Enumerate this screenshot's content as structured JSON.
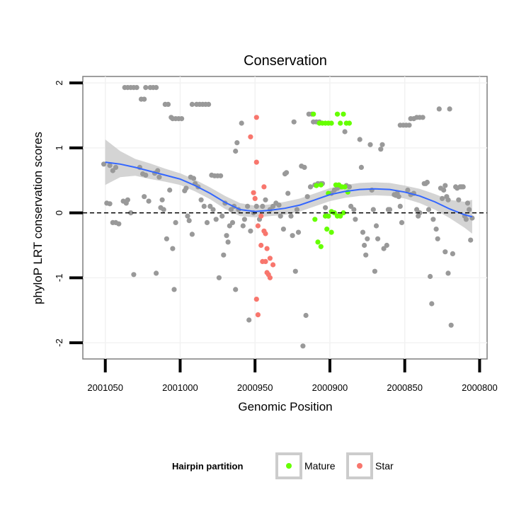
{
  "chart_data": {
    "type": "scatter",
    "title": "Conservation",
    "xlabel": "Genomic Position",
    "ylabel": "phyloP LRT conservation scores",
    "xlim": [
      2001065,
      2000795
    ],
    "ylim": [
      -2.25,
      2.1
    ],
    "x_reversed": true,
    "x_ticks": [
      2001050,
      2001000,
      2000950,
      2000900,
      2000850,
      2000800
    ],
    "x_tick_labels": [
      "2001050",
      "2001000",
      "2000950",
      "2000900",
      "2000850",
      "2000800"
    ],
    "y_ticks": [
      -2,
      -1,
      0,
      1,
      2
    ],
    "y_tick_labels": [
      "-2",
      "-1",
      "0",
      "1",
      "2"
    ],
    "reference_line": {
      "y": 0,
      "style": "dashed",
      "color": "#000000"
    },
    "grid": true,
    "legend": {
      "title": "Hairpin partition",
      "position": "bottom",
      "entries": [
        {
          "label": "Mature",
          "color": "#66ff00"
        },
        {
          "label": "Star",
          "color": "#f8766d"
        }
      ]
    },
    "colors": {
      "other": "#999999",
      "mature": "#66ff00",
      "star": "#f8766d",
      "smooth": "#3366ff",
      "ribbon": "#cccccc"
    },
    "series": [
      {
        "name": "Other",
        "points": [
          [
            2001051,
            0.75
          ],
          [
            2001047,
            0.73
          ],
          [
            2001045,
            0.65
          ],
          [
            2001043,
            0.7
          ],
          [
            2001049,
            0.15
          ],
          [
            2001047,
            0.14
          ],
          [
            2001045,
            -0.15
          ],
          [
            2001043,
            -0.15
          ],
          [
            2001041,
            -0.17
          ],
          [
            2001038,
            0.18
          ],
          [
            2001036,
            0.15
          ],
          [
            2001035,
            0.2
          ],
          [
            2001033,
            0.0
          ],
          [
            2001031,
            -0.95
          ],
          [
            2001037,
            1.93
          ],
          [
            2001035,
            1.93
          ],
          [
            2001033,
            1.93
          ],
          [
            2001031,
            1.93
          ],
          [
            2001029,
            1.93
          ],
          [
            2001027,
            0.7
          ],
          [
            2001025,
            0.6
          ],
          [
            2001023,
            0.58
          ],
          [
            2001021,
            0.18
          ],
          [
            2001024,
            0.25
          ],
          [
            2001026,
            1.75
          ],
          [
            2001024,
            1.75
          ],
          [
            2001023,
            1.93
          ],
          [
            2001020,
            1.93
          ],
          [
            2001018,
            1.93
          ],
          [
            2001016,
            1.93
          ],
          [
            2001017,
            0.61
          ],
          [
            2001015,
            0.65
          ],
          [
            2001013,
            0.08
          ],
          [
            2001011,
            0.05
          ],
          [
            2001016,
            -0.93
          ],
          [
            2001014,
            0.55
          ],
          [
            2001012,
            0.2
          ],
          [
            2001010,
            1.67
          ],
          [
            2001008,
            1.67
          ],
          [
            2001006,
            1.47
          ],
          [
            2001009,
            -0.4
          ],
          [
            2001007,
            0.35
          ],
          [
            2001005,
            -0.55
          ],
          [
            2001003,
            -0.15
          ],
          [
            2001004,
            -1.18
          ],
          [
            2001005,
            1.45
          ],
          [
            2001003,
            1.45
          ],
          [
            2001001,
            1.45
          ],
          [
            2000999,
            1.45
          ],
          [
            2000997,
            0.34
          ],
          [
            2000996,
            0.38
          ],
          [
            2000995,
            -0.05
          ],
          [
            2000993,
            0.55
          ],
          [
            2000991,
            0.53
          ],
          [
            2000990,
            0.45
          ],
          [
            2000992,
            -0.33
          ],
          [
            2000994,
            -0.12
          ],
          [
            2000992,
            1.67
          ],
          [
            2000989,
            1.67
          ],
          [
            2000987,
            1.67
          ],
          [
            2000985,
            1.67
          ],
          [
            2000983,
            1.67
          ],
          [
            2000981,
            1.67
          ],
          [
            2000988,
            0.4
          ],
          [
            2000986,
            0.2
          ],
          [
            2000984,
            0.1
          ],
          [
            2000982,
            -0.15
          ],
          [
            2000980,
            0.1
          ],
          [
            2000978,
            0.05
          ],
          [
            2000979,
            0.58
          ],
          [
            2000977,
            0.57
          ],
          [
            2000975,
            0.57
          ],
          [
            2000973,
            0.57
          ],
          [
            2000976,
            -0.1
          ],
          [
            2000974,
            -1.0
          ],
          [
            2000972,
            -0.05
          ],
          [
            2000970,
            0.15
          ],
          [
            2000969,
            -0.35
          ],
          [
            2000967,
            -0.2
          ],
          [
            2000966,
            0.05
          ],
          [
            2000964,
            0.1
          ],
          [
            2000971,
            -0.65
          ],
          [
            2000968,
            -0.45
          ],
          [
            2000965,
            -0.15
          ],
          [
            2000963,
            0.95
          ],
          [
            2000962,
            1.08
          ],
          [
            2000961,
            0.05
          ],
          [
            2000963,
            -1.18
          ],
          [
            2000959,
            1.38
          ],
          [
            2000958,
            -0.2
          ],
          [
            2000957,
            -0.1
          ],
          [
            2000955,
            0.1
          ],
          [
            2000954,
            -1.65
          ],
          [
            2000953,
            -0.28
          ],
          [
            2000951,
            0.0
          ],
          [
            2000949,
            0.1
          ],
          [
            2000947,
            -0.1
          ],
          [
            2000945,
            0.1
          ],
          [
            2000943,
            0.2
          ],
          [
            2000940,
            0.05
          ],
          [
            2000938,
            0.1
          ],
          [
            2000936,
            0.15
          ],
          [
            2000934,
            0.12
          ],
          [
            2000933,
            -0.05
          ],
          [
            2000931,
            -0.25
          ],
          [
            2000930,
            0.6
          ],
          [
            2000929,
            0.62
          ],
          [
            2000928,
            0.3
          ],
          [
            2000926,
            -0.05
          ],
          [
            2000925,
            -0.35
          ],
          [
            2000923,
            -0.9
          ],
          [
            2000924,
            1.4
          ],
          [
            2000922,
            0.05
          ],
          [
            2000921,
            -0.3
          ],
          [
            2000919,
            0.72
          ],
          [
            2000917,
            0.7
          ],
          [
            2000916,
            -1.58
          ],
          [
            2000918,
            -2.05
          ],
          [
            2000914,
            1.52
          ],
          [
            2000912,
            1.52
          ],
          [
            2000911,
            1.4
          ],
          [
            2000909,
            1.4
          ],
          [
            2000907,
            1.4
          ],
          [
            2000915,
            0.25
          ],
          [
            2000913,
            0.4
          ],
          [
            2000910,
            0.43
          ],
          [
            2000908,
            0.45
          ],
          [
            2000906,
            0.45
          ],
          [
            2000905,
            0.45
          ],
          [
            2000903,
            0.08
          ],
          [
            2000901,
            -0.05
          ],
          [
            2000899,
            0.3
          ],
          [
            2000897,
            0.35
          ],
          [
            2000895,
            0.38
          ],
          [
            2000893,
            0.4
          ],
          [
            2000890,
            1.25
          ],
          [
            2000889,
            0.42
          ],
          [
            2000887,
            0.4
          ],
          [
            2000886,
            0.1
          ],
          [
            2000884,
            0.05
          ],
          [
            2000883,
            -0.1
          ],
          [
            2000880,
            1.13
          ],
          [
            2000879,
            0.7
          ],
          [
            2000878,
            -0.3
          ],
          [
            2000877,
            -0.5
          ],
          [
            2000876,
            -0.65
          ],
          [
            2000875,
            -0.4
          ],
          [
            2000873,
            1.05
          ],
          [
            2000872,
            0.35
          ],
          [
            2000871,
            0.05
          ],
          [
            2000870,
            -0.9
          ],
          [
            2000869,
            -0.2
          ],
          [
            2000868,
            -0.4
          ],
          [
            2000866,
            0.98
          ],
          [
            2000865,
            1.05
          ],
          [
            2000864,
            -0.55
          ],
          [
            2000862,
            -0.5
          ],
          [
            2000861,
            0.05
          ],
          [
            2000860,
            0.05
          ],
          [
            2000857,
            0.28
          ],
          [
            2000856,
            0.27
          ],
          [
            2000855,
            0.3
          ],
          [
            2000854,
            0.25
          ],
          [
            2000853,
            0.1
          ],
          [
            2000852,
            -0.15
          ],
          [
            2000853,
            1.35
          ],
          [
            2000851,
            1.35
          ],
          [
            2000849,
            1.35
          ],
          [
            2000847,
            1.35
          ],
          [
            2000846,
            1.45
          ],
          [
            2000844,
            1.45
          ],
          [
            2000848,
            0.35
          ],
          [
            2000846,
            0.28
          ],
          [
            2000844,
            0.3
          ],
          [
            2000842,
            0.05
          ],
          [
            2000841,
            -0.05
          ],
          [
            2000840,
            0.0
          ],
          [
            2000842,
            1.47
          ],
          [
            2000840,
            1.47
          ],
          [
            2000838,
            1.47
          ],
          [
            2000837,
            0.45
          ],
          [
            2000835,
            0.47
          ],
          [
            2000833,
            -0.98
          ],
          [
            2000836,
            0.45
          ],
          [
            2000834,
            0.05
          ],
          [
            2000832,
            -1.4
          ],
          [
            2000831,
            -0.1
          ],
          [
            2000829,
            -0.25
          ],
          [
            2000828,
            -0.4
          ],
          [
            2000826,
            0.38
          ],
          [
            2000825,
            0.22
          ],
          [
            2000824,
            0.35
          ],
          [
            2000823,
            0.42
          ],
          [
            2000822,
            0.25
          ],
          [
            2000821,
            0.2
          ],
          [
            2000827,
            1.6
          ],
          [
            2000823,
            -0.6
          ],
          [
            2000821,
            -0.93
          ],
          [
            2000820,
            1.6
          ],
          [
            2000819,
            -1.73
          ],
          [
            2000818,
            -0.63
          ],
          [
            2000816,
            0.4
          ],
          [
            2000815,
            0.38
          ],
          [
            2000814,
            0.2
          ],
          [
            2000813,
            0.4
          ],
          [
            2000812,
            0.4
          ],
          [
            2000811,
            0.4
          ],
          [
            2000810,
            -0.05
          ],
          [
            2000809,
            -0.1
          ],
          [
            2000808,
            0.15
          ],
          [
            2000807,
            0.05
          ],
          [
            2000806,
            -0.42
          ],
          [
            2000805,
            -0.08
          ]
        ]
      },
      {
        "name": "Mature",
        "points": [
          [
            2000911,
            1.52
          ],
          [
            2000907,
            1.38
          ],
          [
            2000905,
            1.38
          ],
          [
            2000903,
            1.38
          ],
          [
            2000901,
            1.38
          ],
          [
            2000899,
            1.38
          ],
          [
            2000895,
            1.52
          ],
          [
            2000893,
            1.38
          ],
          [
            2000891,
            1.52
          ],
          [
            2000889,
            1.38
          ],
          [
            2000887,
            1.38
          ],
          [
            2000909,
            0.42
          ],
          [
            2000906,
            0.43
          ],
          [
            2000901,
            0.3
          ],
          [
            2000896,
            0.43
          ],
          [
            2000894,
            0.43
          ],
          [
            2000892,
            0.4
          ],
          [
            2000890,
            0.4
          ],
          [
            2000888,
            0.32
          ],
          [
            2000910,
            -0.1
          ],
          [
            2000908,
            -0.45
          ],
          [
            2000906,
            -0.52
          ],
          [
            2000903,
            -0.05
          ],
          [
            2000901,
            -0.05
          ],
          [
            2000899,
            0.02
          ],
          [
            2000897,
            0.0
          ],
          [
            2000895,
            -0.05
          ],
          [
            2000893,
            -0.05
          ],
          [
            2000891,
            0.0
          ],
          [
            2000902,
            -0.25
          ],
          [
            2000899,
            -0.3
          ]
        ]
      },
      {
        "name": "Star",
        "points": [
          [
            2000949,
            1.47
          ],
          [
            2000953,
            1.17
          ],
          [
            2000949,
            0.78
          ],
          [
            2000951,
            0.31
          ],
          [
            2000950,
            0.22
          ],
          [
            2000944,
            0.4
          ],
          [
            2000948,
            -0.2
          ],
          [
            2000946,
            -0.05
          ],
          [
            2000944,
            -0.28
          ],
          [
            2000943,
            -0.32
          ],
          [
            2000942,
            -0.55
          ],
          [
            2000940,
            -0.7
          ],
          [
            2000946,
            -0.5
          ],
          [
            2000945,
            -0.75
          ],
          [
            2000943,
            -0.75
          ],
          [
            2000942,
            -0.92
          ],
          [
            2000941,
            -0.95
          ],
          [
            2000940,
            -1.0
          ],
          [
            2000938,
            -0.8
          ],
          [
            2000949,
            -1.33
          ],
          [
            2000948,
            -1.57
          ]
        ]
      }
    ],
    "smooth": {
      "x": [
        2001050,
        2001040,
        2001030,
        2001020,
        2001010,
        2001000,
        2000990,
        2000980,
        2000970,
        2000960,
        2000950,
        2000940,
        2000930,
        2000920,
        2000910,
        2000900,
        2000890,
        2000880,
        2000870,
        2000860,
        2000850,
        2000840,
        2000830,
        2000820,
        2000810,
        2000805
      ],
      "y": [
        0.78,
        0.75,
        0.7,
        0.64,
        0.58,
        0.52,
        0.42,
        0.3,
        0.16,
        0.05,
        0.02,
        0.04,
        0.07,
        0.12,
        0.2,
        0.28,
        0.33,
        0.36,
        0.37,
        0.36,
        0.32,
        0.26,
        0.17,
        0.06,
        -0.03,
        -0.06
      ],
      "lower": [
        0.43,
        0.55,
        0.57,
        0.52,
        0.48,
        0.43,
        0.33,
        0.21,
        0.06,
        -0.05,
        -0.07,
        -0.05,
        -0.03,
        0.02,
        0.1,
        0.18,
        0.23,
        0.26,
        0.27,
        0.26,
        0.22,
        0.15,
        0.05,
        -0.08,
        -0.23,
        -0.32
      ],
      "upper": [
        1.13,
        0.95,
        0.83,
        0.76,
        0.68,
        0.61,
        0.51,
        0.39,
        0.26,
        0.15,
        0.11,
        0.13,
        0.17,
        0.22,
        0.3,
        0.38,
        0.43,
        0.46,
        0.47,
        0.46,
        0.42,
        0.37,
        0.29,
        0.2,
        0.17,
        0.2
      ]
    }
  }
}
